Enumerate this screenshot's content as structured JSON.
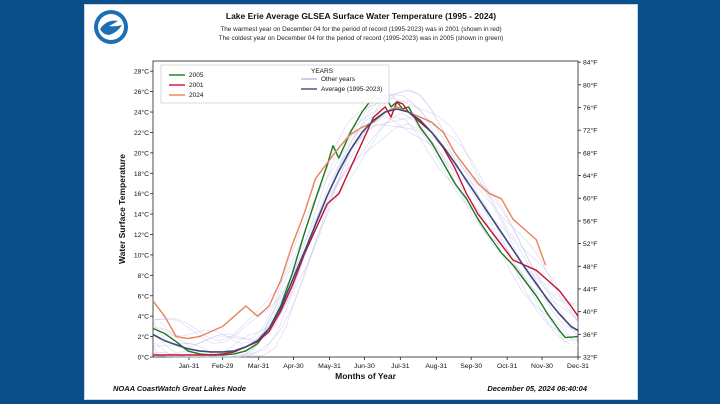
{
  "logo": {
    "text": "NOAA",
    "colors": {
      "outer": "#1c6fb3",
      "inner": "#ffffff",
      "bird": "#1c6fb3"
    }
  },
  "footer": {
    "left": "NOAA CoastWatch Great Lakes Node",
    "right": "December 05, 2024 06:40:04"
  },
  "chart_data": {
    "type": "line",
    "title": "Lake Erie Average GLSEA Surface Water Temperature (1995 - 2024)",
    "subtitle_lines": [
      "The warmest year on December 04 for the period of record (1995-2023) was in 2001 (shown in red)",
      "The coldest year on December 04 for the period of record (1995-2023) was in 2005 (shown in green)"
    ],
    "xlabel": "Months of Year",
    "ylabel": "Water Surface Temperature",
    "xlim": [
      0,
      366
    ],
    "ylim": [
      0,
      29
    ],
    "y_ticks": [
      0,
      2,
      4,
      6,
      8,
      10,
      12,
      14,
      16,
      18,
      20,
      22,
      24,
      26,
      28
    ],
    "y_tick_labels": [
      "0°C",
      "2°C",
      "4°C",
      "6°C",
      "8°C",
      "10°C",
      "12°C",
      "14°C",
      "16°C",
      "18°C",
      "20°C",
      "22°C",
      "24°C",
      "26°C",
      "28°C"
    ],
    "y2_ticks_f": [
      32,
      36,
      40,
      44,
      48,
      52,
      56,
      60,
      64,
      68,
      72,
      76,
      80,
      84
    ],
    "y2_tick_labels": [
      "32°F",
      "36°F",
      "40°F",
      "44°F",
      "48°F",
      "52°F",
      "56°F",
      "60°F",
      "64°F",
      "68°F",
      "72°F",
      "76°F",
      "80°F",
      "84°F"
    ],
    "x_ticks": [
      31,
      60,
      91,
      121,
      152,
      182,
      213,
      244,
      274,
      305,
      335,
      366
    ],
    "x_tick_labels": [
      "Jan-31",
      "Feb-29",
      "Mar-31",
      "Apr-30",
      "May-31",
      "Jun-30",
      "Jul-31",
      "Aug-31",
      "Sep-30",
      "Oct-31",
      "Nov-30",
      "Dec-31"
    ],
    "legend": {
      "placement": "top-left",
      "title": "YEARS",
      "entries": [
        "2005",
        "2001",
        "2024",
        "Other years",
        "Average (1995-2023)"
      ]
    },
    "series": [
      {
        "name": "2005",
        "color": "#1a7a1a",
        "width": 1.4,
        "x": [
          0,
          10,
          20,
          30,
          40,
          50,
          60,
          70,
          80,
          90,
          100,
          110,
          120,
          130,
          140,
          150,
          155,
          160,
          170,
          180,
          190,
          195,
          200,
          205,
          210,
          215,
          220,
          230,
          240,
          250,
          260,
          270,
          280,
          290,
          300,
          310,
          320,
          330,
          340,
          350,
          355,
          366
        ],
        "y": [
          2.8,
          2.3,
          1.5,
          0.6,
          0.3,
          0.2,
          0.2,
          0.3,
          0.6,
          1.3,
          2.8,
          5.0,
          8.2,
          12.0,
          15.5,
          18.8,
          20.7,
          19.5,
          22.0,
          24.0,
          25.5,
          25.2,
          25.6,
          24.5,
          25.0,
          24.3,
          24.5,
          22.5,
          21.0,
          19.0,
          17.0,
          15.5,
          13.5,
          11.8,
          10.2,
          9.0,
          7.5,
          6.0,
          4.2,
          2.6,
          1.9,
          2.0
        ]
      },
      {
        "name": "2001",
        "color": "#c8102e",
        "width": 1.4,
        "x": [
          0,
          10,
          20,
          30,
          40,
          50,
          60,
          70,
          80,
          90,
          100,
          110,
          120,
          130,
          140,
          150,
          160,
          170,
          180,
          190,
          200,
          205,
          210,
          215,
          220,
          230,
          240,
          250,
          260,
          270,
          280,
          290,
          300,
          310,
          320,
          330,
          340,
          350,
          360,
          366
        ],
        "y": [
          0.2,
          0.2,
          0.2,
          0.2,
          0.2,
          0.2,
          0.3,
          0.5,
          1.0,
          1.5,
          2.5,
          4.5,
          7.0,
          10.0,
          12.5,
          15.0,
          16.0,
          18.5,
          21.0,
          23.5,
          24.5,
          23.5,
          25.0,
          24.8,
          24.0,
          23.0,
          22.0,
          20.5,
          18.5,
          16.0,
          14.0,
          12.5,
          11.0,
          9.5,
          9.0,
          8.5,
          7.5,
          6.5,
          5.0,
          4.0
        ]
      },
      {
        "name": "2024",
        "color": "#e8825a",
        "width": 1.4,
        "x": [
          0,
          10,
          20,
          30,
          40,
          50,
          60,
          70,
          80,
          90,
          100,
          110,
          120,
          130,
          140,
          150,
          160,
          170,
          180,
          190,
          200,
          210,
          220,
          230,
          240,
          250,
          260,
          270,
          280,
          290,
          300,
          310,
          320,
          330,
          338
        ],
        "y": [
          5.5,
          4.0,
          2.0,
          1.8,
          2.0,
          2.5,
          3.0,
          4.0,
          5.0,
          4.0,
          5.0,
          7.5,
          11.0,
          14.0,
          17.5,
          19.0,
          20.5,
          21.8,
          22.5,
          23.0,
          24.0,
          24.5,
          24.0,
          23.5,
          23.0,
          22.0,
          20.0,
          18.5,
          17.0,
          16.0,
          15.5,
          13.5,
          12.5,
          11.5,
          9.0
        ]
      },
      {
        "name": "Average (1995-2023)",
        "color": "#3b4a78",
        "width": 1.6,
        "x": [
          0,
          10,
          20,
          30,
          40,
          50,
          60,
          70,
          80,
          90,
          100,
          110,
          120,
          130,
          140,
          150,
          160,
          170,
          180,
          190,
          200,
          210,
          220,
          230,
          240,
          250,
          260,
          270,
          280,
          290,
          300,
          310,
          320,
          330,
          340,
          350,
          360,
          366
        ],
        "y": [
          2.2,
          1.6,
          1.2,
          0.8,
          0.6,
          0.5,
          0.5,
          0.6,
          1.0,
          1.6,
          2.8,
          4.8,
          7.5,
          10.2,
          13.0,
          15.8,
          18.2,
          20.3,
          22.0,
          23.2,
          24.0,
          24.3,
          24.0,
          23.2,
          22.0,
          20.6,
          19.0,
          17.3,
          15.6,
          13.9,
          12.2,
          10.5,
          8.8,
          7.2,
          5.6,
          4.2,
          3.0,
          2.6
        ]
      }
    ],
    "other_years_color": "#b8b6ea"
  }
}
